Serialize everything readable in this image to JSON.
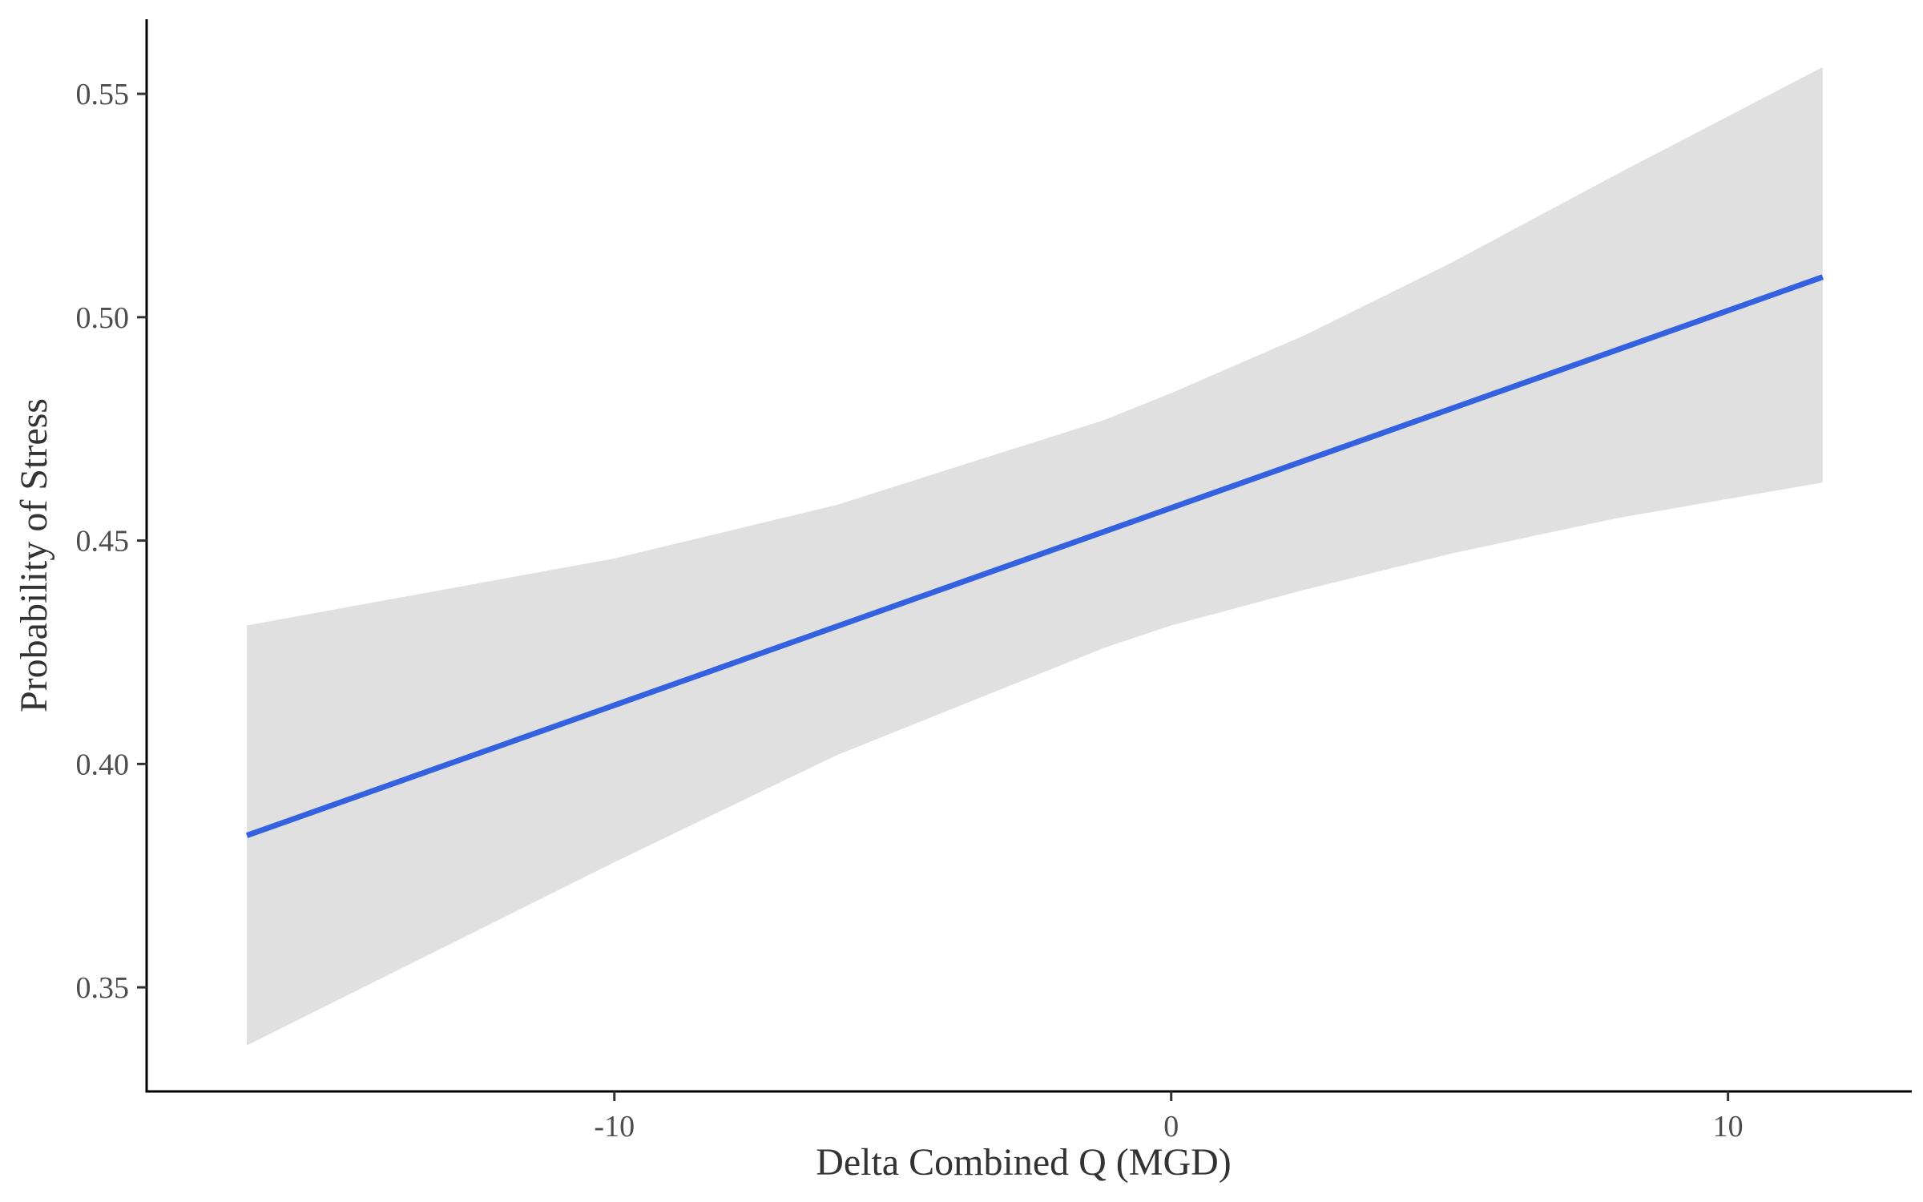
{
  "chart_data": {
    "type": "line",
    "title": "",
    "xlabel": "Delta Combined Q (MGD)",
    "ylabel": "Probability of Stress",
    "xlim": [
      -18.4,
      13.3
    ],
    "ylim": [
      0.3267,
      0.5667
    ],
    "x_ticks": [
      {
        "value": -10,
        "label": "-10"
      },
      {
        "value": 0,
        "label": "0"
      },
      {
        "value": 10,
        "label": "10"
      }
    ],
    "y_ticks": [
      {
        "value": 0.35,
        "label": "0.35"
      },
      {
        "value": 0.4,
        "label": "0.40"
      },
      {
        "value": 0.45,
        "label": "0.45"
      },
      {
        "value": 0.5,
        "label": "0.50"
      },
      {
        "value": 0.55,
        "label": "0.55"
      }
    ],
    "grid": false,
    "legend": "none",
    "series": [
      {
        "x": [
          -16.6,
          11.7
        ],
        "y": [
          0.384,
          0.509
        ],
        "color": "#3461e0"
      }
    ],
    "confidence_band": {
      "color": "#e0e0e0",
      "x": [
        -16.6,
        -10.0,
        -6.0,
        -1.2,
        0.0,
        2.4,
        5.0,
        8.0,
        11.7
      ],
      "upper": [
        0.431,
        0.446,
        0.458,
        0.477,
        0.483,
        0.496,
        0.512,
        0.532,
        0.556
      ],
      "lower": [
        0.337,
        0.378,
        0.402,
        0.426,
        0.431,
        0.439,
        0.447,
        0.455,
        0.463
      ]
    }
  }
}
